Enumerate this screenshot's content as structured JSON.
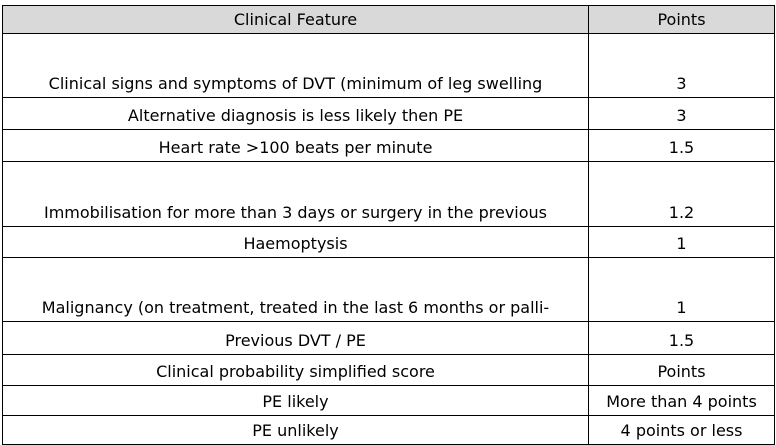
{
  "table": {
    "header": [
      "Clinical Feature",
      "Points"
    ],
    "rows": [
      [
        "Clinical signs and symptoms of DVT (minimum of leg swelling",
        "3"
      ],
      [
        "Alternative diagnosis is less likely then PE",
        "3"
      ],
      [
        "Heart rate >100 beats per minute",
        "1.5"
      ],
      [
        "Immobilisation for more than 3 days or surgery in the previous",
        "1.2"
      ],
      [
        "Haemoptysis",
        "1"
      ],
      [
        "Malignancy (on treatment, treated in the last 6 months or palli-",
        "1"
      ],
      [
        "Previous DVT / PE",
        "1.5"
      ],
      [
        "Clinical probability simplified score",
        "Points"
      ],
      [
        "PE likely",
        "More than 4 points"
      ],
      [
        "PE unlikely",
        "4 points or less"
      ]
    ]
  }
}
